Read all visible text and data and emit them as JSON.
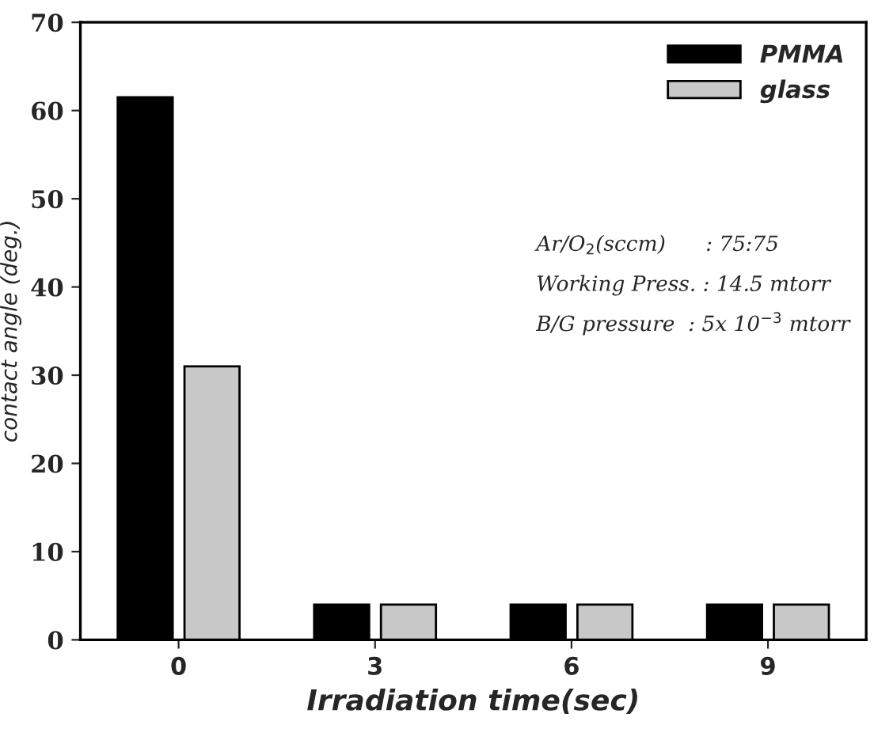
{
  "chart_data": {
    "type": "bar",
    "xlabel": "Irradiation time(sec)",
    "ylabel": "contact angle (deg.)",
    "categories": [
      "0",
      "3",
      "6",
      "9"
    ],
    "series": [
      {
        "name": "PMMA",
        "color": "#000000",
        "values": [
          61.5,
          4,
          4,
          4
        ]
      },
      {
        "name": "glass",
        "color": "#c8c8c8",
        "values": [
          31,
          4,
          4,
          4
        ]
      }
    ],
    "ylim": [
      0,
      70
    ],
    "yticks": [
      0,
      10,
      20,
      30,
      40,
      50,
      60,
      70
    ],
    "legend": "top right",
    "grid": false,
    "annotations": [
      "Ar/O$_{2}$(sccm)      : 75:75",
      "Working Press. : 14.5 mtorr",
      "B/G pressure  : 5x 10$^{−3}$ mtorr"
    ]
  }
}
